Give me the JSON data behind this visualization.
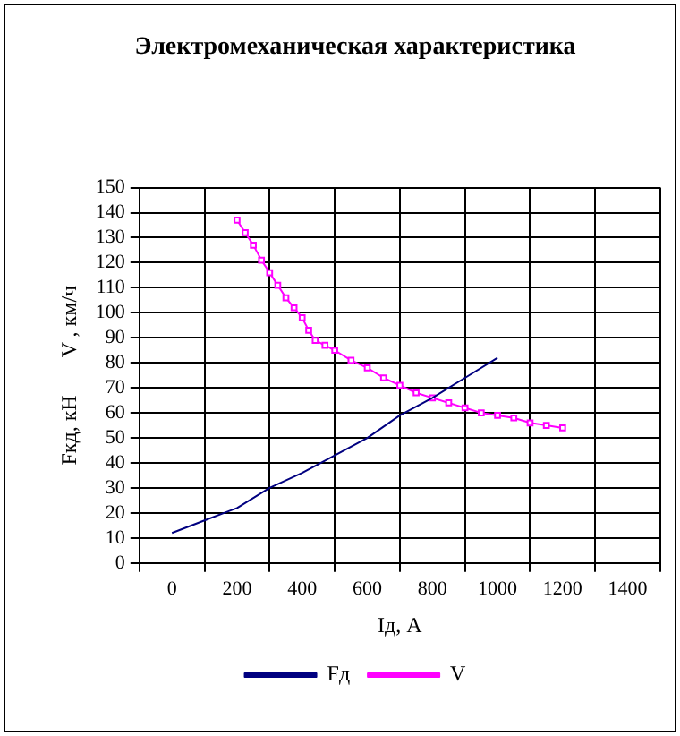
{
  "chart_data": {
    "type": "line",
    "title": "Электромеханическая характеристика",
    "xlabel": "Iд, А",
    "ylabel": "Fкд, кН       V , км/ч",
    "xlim": [
      -100,
      1500
    ],
    "xticks": [
      {
        "value": -100,
        "label": null
      },
      0,
      {
        "value": 100,
        "label": null
      },
      200,
      {
        "value": 300,
        "label": null
      },
      400,
      {
        "value": 500,
        "label": null
      },
      600,
      {
        "value": 700,
        "label": null
      },
      800,
      {
        "value": 900,
        "label": null
      },
      1000,
      {
        "value": 1100,
        "label": null
      },
      1200,
      {
        "value": 1300,
        "label": null
      },
      1400,
      {
        "value": 1500,
        "label": null
      }
    ],
    "ylim": [
      0,
      150
    ],
    "yticks": [
      0,
      10,
      20,
      30,
      40,
      50,
      60,
      70,
      80,
      90,
      100,
      110,
      120,
      130,
      140,
      150
    ],
    "grid": true,
    "legend": "bottom",
    "series": [
      {
        "name": "Fд",
        "color": "#000080",
        "marker": "none",
        "x": [
          0,
          100,
          200,
          300,
          400,
          500,
          600,
          700,
          800,
          900,
          1000
        ],
        "values": [
          12,
          17,
          22,
          30,
          36,
          43,
          50,
          59,
          66,
          74,
          82
        ]
      },
      {
        "name": "V",
        "color": "#ff00ff",
        "marker": "square",
        "x": [
          200,
          225,
          250,
          275,
          300,
          325,
          350,
          375,
          400,
          420,
          440,
          470,
          500,
          550,
          600,
          650,
          700,
          750,
          800,
          850,
          900,
          950,
          1000,
          1050,
          1100,
          1150,
          1200
        ],
        "values": [
          137,
          132,
          127,
          121,
          116,
          111,
          106,
          102,
          98,
          93,
          89,
          87,
          85,
          81,
          78,
          74,
          71,
          68,
          66,
          64,
          62,
          60,
          59,
          58,
          56,
          55,
          54
        ]
      }
    ]
  }
}
